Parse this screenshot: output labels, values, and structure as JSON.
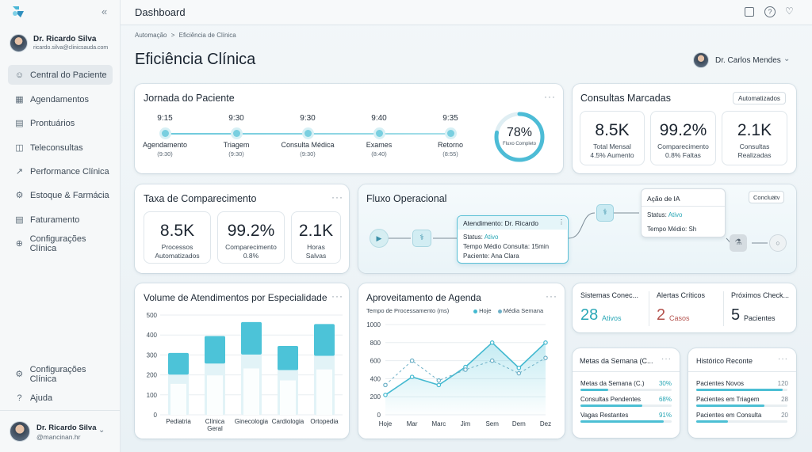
{
  "app": {
    "logo": "app-logo-icon",
    "collapse": "«"
  },
  "user": {
    "name": "Dr. Ricardo Silva",
    "email": "ricardo.silva@clinicsauda.com"
  },
  "nav": [
    {
      "label": "Central do Paciente",
      "icon": "person-icon"
    },
    {
      "label": "Agendamentos",
      "icon": "calendar-icon"
    },
    {
      "label": "Prontuários",
      "icon": "document-icon"
    },
    {
      "label": "Teleconsultas",
      "icon": "video-icon"
    },
    {
      "label": "Performance Clínica",
      "icon": "trend-icon"
    },
    {
      "label": "Estoque & Farmácia",
      "icon": "pill-icon"
    },
    {
      "label": "Faturamento",
      "icon": "invoice-icon"
    },
    {
      "label": "Configurações Clínica",
      "icon": "plus-circle-icon"
    }
  ],
  "nav_bottom": [
    {
      "label": "Configurações Clínica",
      "icon": "gear-icon"
    },
    {
      "label": "Ajuda",
      "icon": "help-icon"
    }
  ],
  "footer_user": {
    "name": "Dr. Ricardo Silva",
    "handle": "@mancinan.hr"
  },
  "topbar": {
    "title": "Dashboard"
  },
  "breadcrumb": [
    "Automação",
    ">",
    "Eficiência de Clínica"
  ],
  "page_title": "Eficiência Clínica",
  "header_user": "Dr. Carlos Mendes",
  "journey": {
    "title": "Jornada do Paciente",
    "steps": [
      {
        "time": "9:15",
        "label": "Agendamento",
        "sub": "(9:30)"
      },
      {
        "time": "9:30",
        "label": "Triagem",
        "sub": "(9:30)"
      },
      {
        "time": "9:30",
        "label": "Consulta Médica",
        "sub": "(9:30)"
      },
      {
        "time": "9:40",
        "label": "Exames",
        "sub": "(8:40)"
      },
      {
        "time": "9:35",
        "label": "Retorno",
        "sub": "(8:55)"
      }
    ],
    "progress_value": "78%",
    "progress_label": "Fluxo Completo",
    "progress": 0.78
  },
  "consultas": {
    "title": "Consultas Marcadas",
    "badge": "Automatizados",
    "stats": [
      {
        "value": "8.5K",
        "label": "Total Mensal",
        "sub": "4.5% Aumento"
      },
      {
        "value": "99.2%",
        "label": "Comparecimento",
        "sub": "0.8% Faltas"
      },
      {
        "value": "2.1K",
        "label": "Consultas",
        "sub": "Realizadas"
      }
    ]
  },
  "taxa": {
    "title": "Taxa de Comparecimento",
    "stats": [
      {
        "value": "8.5K",
        "label": "Processos",
        "sub": "Automatizados"
      },
      {
        "value": "99.2%",
        "label": "Comparecimento",
        "sub": "0.8%"
      },
      {
        "value": "2.1K",
        "label": "Horas",
        "sub": "Salvas"
      }
    ]
  },
  "fluxo": {
    "title": "Fluxo Operacional",
    "button": "Concluätv",
    "box1": {
      "title": "Atendimento: Dr. Ricardo",
      "status_label": "Status:",
      "status": "Ativo",
      "line2": "Tempo Médio Consulta: 15min",
      "line3": "Paciente: Ana Clara"
    },
    "box2": {
      "title": "Ação de IA",
      "status_label": "Status:",
      "status": "Ativo",
      "line2": "Tempo Médio: Sh"
    }
  },
  "kpis": [
    {
      "title": "Sistemas Conec...",
      "value": "28",
      "unit": "Ativos"
    },
    {
      "title": "Alertas Críticos",
      "value": "2",
      "unit": "Casos"
    },
    {
      "title": "Próximos Check...",
      "value": "5",
      "unit": "Pacientes"
    }
  ],
  "metas": {
    "title": "Metas da Semana (C...",
    "rows": [
      {
        "label": "Metas da Semana (C.)",
        "value": "30%",
        "fill": 0.3
      },
      {
        "label": "Consultas Pendentes",
        "value": "68%",
        "fill": 0.68
      },
      {
        "label": "Vagas Restantes",
        "value": "91%",
        "fill": 0.91
      }
    ]
  },
  "historico": {
    "title": "Histórico Reconte",
    "rows": [
      {
        "label": "Pacientes Novos",
        "value": "120",
        "fill": 0.95
      },
      {
        "label": "Pacientes em Triagem",
        "value": "28",
        "fill": 0.75
      },
      {
        "label": "Pacientes em Consulta",
        "value": "20",
        "fill": 0.35
      }
    ]
  },
  "chart_data": [
    {
      "type": "bar",
      "title": "Volume de Atendimentos por Especialidade",
      "categories": [
        "Pediatria",
        "Clínica Geral",
        "Ginecologia",
        "Cardiologia",
        "Ortopedia"
      ],
      "categories_display": [
        [
          "Pediatria"
        ],
        [
          "Clínica",
          "Geral"
        ],
        [
          "Ginecologia"
        ],
        [
          "Cardiologia"
        ],
        [
          "Ortopedia"
        ]
      ],
      "values": [
        310,
        395,
        465,
        345,
        455
      ],
      "ylim": [
        0,
        500
      ],
      "yticks": [
        0,
        100,
        200,
        300,
        400,
        500
      ],
      "colors": {
        "top": "#4cc3d8",
        "bottom": "#e2f3f7"
      }
    },
    {
      "type": "line",
      "title": "Aproveitamento de Agenda",
      "ylabel": "Tempo de Processamento (ms)",
      "categories": [
        "Hoje",
        "Mar",
        "Marc",
        "Jim",
        "Sem",
        "Dem",
        "Dez"
      ],
      "series": [
        {
          "name": "Hoje",
          "values": [
            220,
            420,
            330,
            530,
            800,
            520,
            800
          ],
          "color": "#43b9d0"
        },
        {
          "name": "Média Semana",
          "values": [
            330,
            600,
            380,
            500,
            600,
            460,
            630
          ],
          "color": "#6db0c7"
        }
      ],
      "ylim": [
        0,
        1000
      ],
      "yticks": [
        0,
        200,
        400,
        600,
        800,
        1000
      ]
    }
  ]
}
